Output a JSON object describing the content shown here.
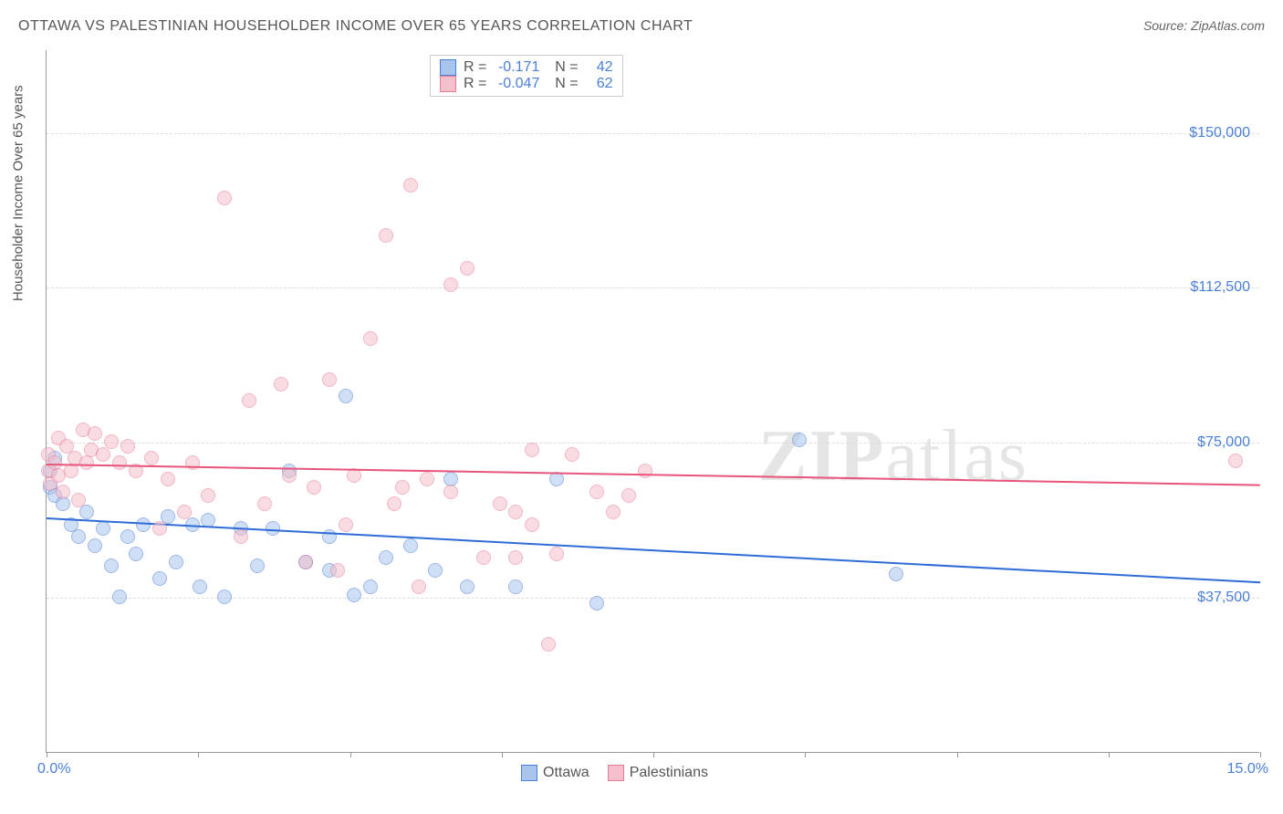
{
  "title": "OTTAWA VS PALESTINIAN HOUSEHOLDER INCOME OVER 65 YEARS CORRELATION CHART",
  "source": "Source: ZipAtlas.com",
  "watermark_bold": "ZIP",
  "watermark_rest": "atlas",
  "y_axis_title": "Householder Income Over 65 years",
  "chart": {
    "type": "scatter",
    "xlim": [
      0.0,
      15.0
    ],
    "ylim": [
      0,
      170000
    ],
    "x_label_min": "0.0%",
    "x_label_max": "15.0%",
    "x_ticks_pct": [
      0,
      12.5,
      25,
      37.5,
      50,
      62.5,
      75,
      87.5,
      100
    ],
    "y_gridlines": [
      {
        "value": 37500,
        "label": "$37,500"
      },
      {
        "value": 75000,
        "label": "$75,000"
      },
      {
        "value": 112500,
        "label": "$112,500"
      },
      {
        "value": 150000,
        "label": "$150,000"
      }
    ],
    "background_color": "#ffffff",
    "grid_color": "#dddddd",
    "point_radius": 8,
    "point_opacity": 0.55,
    "series": [
      {
        "name": "Ottawa",
        "color_fill": "#a9c5ed",
        "color_stroke": "#4a7fd8",
        "R": "-0.171",
        "N": "42",
        "trend": {
          "y1": 57000,
          "y2": 41500,
          "color": "#2e6bd6"
        },
        "points": [
          {
            "x": 0.05,
            "y": 64000
          },
          {
            "x": 0.05,
            "y": 68000
          },
          {
            "x": 0.1,
            "y": 62000
          },
          {
            "x": 0.1,
            "y": 71000
          },
          {
            "x": 0.2,
            "y": 60000
          },
          {
            "x": 0.3,
            "y": 55000
          },
          {
            "x": 0.4,
            "y": 52000
          },
          {
            "x": 0.5,
            "y": 58000
          },
          {
            "x": 0.6,
            "y": 50000
          },
          {
            "x": 0.7,
            "y": 54000
          },
          {
            "x": 0.8,
            "y": 45000
          },
          {
            "x": 0.9,
            "y": 37500
          },
          {
            "x": 1.0,
            "y": 52000
          },
          {
            "x": 1.1,
            "y": 48000
          },
          {
            "x": 1.2,
            "y": 55000
          },
          {
            "x": 1.4,
            "y": 42000
          },
          {
            "x": 1.5,
            "y": 57000
          },
          {
            "x": 1.6,
            "y": 46000
          },
          {
            "x": 1.8,
            "y": 55000
          },
          {
            "x": 1.9,
            "y": 40000
          },
          {
            "x": 2.0,
            "y": 56000
          },
          {
            "x": 2.2,
            "y": 37500
          },
          {
            "x": 2.4,
            "y": 54000
          },
          {
            "x": 2.6,
            "y": 45000
          },
          {
            "x": 2.8,
            "y": 54000
          },
          {
            "x": 3.0,
            "y": 68000
          },
          {
            "x": 3.2,
            "y": 46000
          },
          {
            "x": 3.5,
            "y": 44000
          },
          {
            "x": 3.7,
            "y": 86000
          },
          {
            "x": 3.8,
            "y": 38000
          },
          {
            "x": 4.0,
            "y": 40000
          },
          {
            "x": 4.2,
            "y": 47000
          },
          {
            "x": 4.5,
            "y": 50000
          },
          {
            "x": 4.8,
            "y": 44000
          },
          {
            "x": 5.0,
            "y": 66000
          },
          {
            "x": 5.2,
            "y": 40000
          },
          {
            "x": 5.8,
            "y": 40000
          },
          {
            "x": 6.3,
            "y": 66000
          },
          {
            "x": 6.8,
            "y": 36000
          },
          {
            "x": 9.3,
            "y": 75500
          },
          {
            "x": 10.5,
            "y": 43000
          },
          {
            "x": 3.5,
            "y": 52000
          }
        ]
      },
      {
        "name": "Palestinians",
        "color_fill": "#f4c0cb",
        "color_stroke": "#e87a9a",
        "R": "-0.047",
        "N": "62",
        "trend": {
          "y1": 70000,
          "y2": 65000,
          "color": "#e8547a"
        },
        "points": [
          {
            "x": 0.02,
            "y": 68000
          },
          {
            "x": 0.02,
            "y": 72000
          },
          {
            "x": 0.05,
            "y": 65000
          },
          {
            "x": 0.1,
            "y": 70000
          },
          {
            "x": 0.15,
            "y": 67000
          },
          {
            "x": 0.15,
            "y": 76000
          },
          {
            "x": 0.2,
            "y": 63000
          },
          {
            "x": 0.25,
            "y": 74000
          },
          {
            "x": 0.3,
            "y": 68000
          },
          {
            "x": 0.35,
            "y": 71000
          },
          {
            "x": 0.4,
            "y": 61000
          },
          {
            "x": 0.45,
            "y": 78000
          },
          {
            "x": 0.5,
            "y": 70000
          },
          {
            "x": 0.55,
            "y": 73000
          },
          {
            "x": 0.6,
            "y": 77000
          },
          {
            "x": 0.7,
            "y": 72000
          },
          {
            "x": 0.8,
            "y": 75000
          },
          {
            "x": 0.9,
            "y": 70000
          },
          {
            "x": 1.0,
            "y": 74000
          },
          {
            "x": 1.1,
            "y": 68000
          },
          {
            "x": 1.3,
            "y": 71000
          },
          {
            "x": 1.4,
            "y": 54000
          },
          {
            "x": 1.5,
            "y": 66000
          },
          {
            "x": 1.7,
            "y": 58000
          },
          {
            "x": 1.8,
            "y": 70000
          },
          {
            "x": 2.0,
            "y": 62000
          },
          {
            "x": 2.2,
            "y": 134000
          },
          {
            "x": 2.4,
            "y": 52000
          },
          {
            "x": 2.5,
            "y": 85000
          },
          {
            "x": 2.7,
            "y": 60000
          },
          {
            "x": 2.9,
            "y": 89000
          },
          {
            "x": 3.0,
            "y": 67000
          },
          {
            "x": 3.2,
            "y": 46000
          },
          {
            "x": 3.3,
            "y": 64000
          },
          {
            "x": 3.5,
            "y": 90000
          },
          {
            "x": 3.7,
            "y": 55000
          },
          {
            "x": 3.8,
            "y": 67000
          },
          {
            "x": 4.0,
            "y": 100000
          },
          {
            "x": 4.2,
            "y": 125000
          },
          {
            "x": 4.3,
            "y": 60000
          },
          {
            "x": 4.4,
            "y": 64000
          },
          {
            "x": 4.5,
            "y": 137000
          },
          {
            "x": 4.6,
            "y": 40000
          },
          {
            "x": 4.7,
            "y": 66000
          },
          {
            "x": 5.0,
            "y": 113000
          },
          {
            "x": 5.0,
            "y": 63000
          },
          {
            "x": 5.2,
            "y": 117000
          },
          {
            "x": 5.4,
            "y": 47000
          },
          {
            "x": 5.6,
            "y": 60000
          },
          {
            "x": 5.8,
            "y": 58000
          },
          {
            "x": 5.8,
            "y": 47000
          },
          {
            "x": 6.0,
            "y": 73000
          },
          {
            "x": 6.0,
            "y": 55000
          },
          {
            "x": 6.2,
            "y": 26000
          },
          {
            "x": 6.3,
            "y": 48000
          },
          {
            "x": 6.5,
            "y": 72000
          },
          {
            "x": 6.8,
            "y": 63000
          },
          {
            "x": 7.0,
            "y": 58000
          },
          {
            "x": 7.2,
            "y": 62000
          },
          {
            "x": 7.4,
            "y": 68000
          },
          {
            "x": 14.7,
            "y": 70500
          },
          {
            "x": 3.6,
            "y": 44000
          }
        ]
      }
    ]
  }
}
